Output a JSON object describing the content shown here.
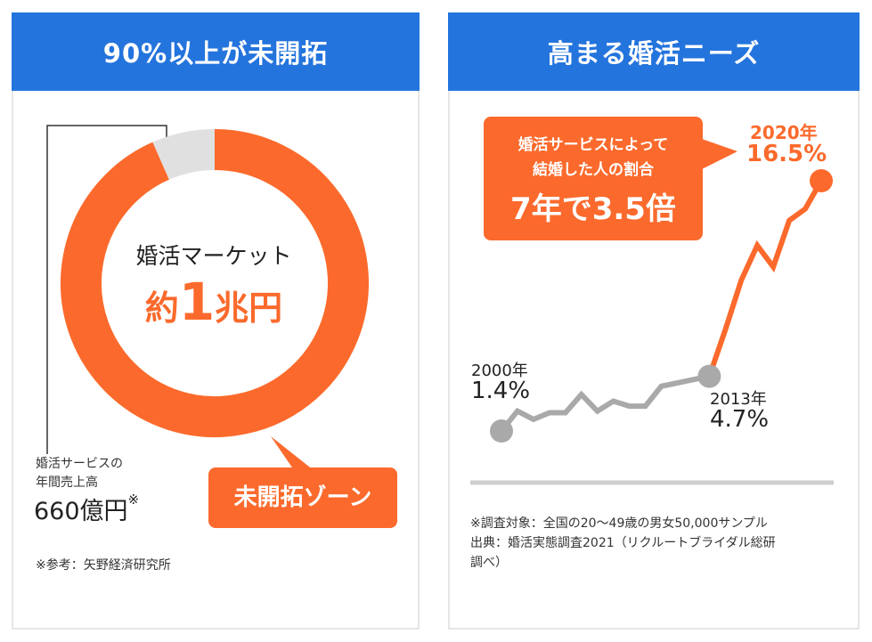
{
  "left_panel": {
    "header": "90%以上が未開拓",
    "center_label": "婚活マーケット",
    "center_value_prefix": "約",
    "center_value_number": "1",
    "center_value_suffix": "兆円",
    "callout_line1": "婚活サービスの",
    "callout_line2": "年間売上高",
    "callout_value": "660億円",
    "callout_mark": "※",
    "zone_label": "未開拓ゾーン",
    "source_note": "※参考：矢野経済研究所"
  },
  "right_panel": {
    "header": "高まる婚活ニーズ",
    "bubble_line1": "婚活サービスによって",
    "bubble_line2": "結婚した人の割合",
    "bubble_big": "7年で3.5倍",
    "label_2000_year": "2000年",
    "label_2000_value": "1.4%",
    "label_2013_year": "2013年",
    "label_2013_value": "4.7%",
    "label_2020_year": "2020年",
    "label_2020_value": "16.5%",
    "note_line1": "※調査対象：全国の20～49歳の男女50,000サンプル",
    "note_line2": "出典：婚活実態調査2021（リクルートブライダル総研",
    "note_line3": "調べ）"
  },
  "colors": {
    "header_blue": "#2474dd",
    "orange": "#fb6a2c",
    "gray": "#a9a9a9",
    "light_gray": "#e0e0e0"
  },
  "chart_data": [
    {
      "type": "pie",
      "variant": "donut",
      "title": "婚活マーケット",
      "slices": [
        {
          "label": "年間売上高",
          "value": 660
        },
        {
          "label": "未開拓ゾーン",
          "value": 9340
        }
      ],
      "unit": "億円"
    },
    {
      "type": "line",
      "title": "婚活サービスによって結婚した人の割合",
      "series": [
        {
          "name": "",
          "x": [
            2000,
            2001,
            2002,
            2003,
            2004,
            2005,
            2006,
            2007,
            2008,
            2009,
            2010,
            2011,
            2012,
            2013
          ],
          "y": [
            1.4,
            2.6,
            2.1,
            2.5,
            2.5,
            3.6,
            2.6,
            3.2,
            2.9,
            2.9,
            4.1,
            4.3,
            4.5,
            4.7
          ]
        },
        {
          "name": "",
          "x": [
            2013,
            2014,
            2015,
            2016,
            2017,
            2018,
            2019,
            2020
          ],
          "y": [
            4.7,
            7.5,
            10.5,
            12.6,
            11.3,
            14.1,
            14.8,
            16.5
          ]
        }
      ],
      "colors": [
        "#a9a9a9",
        "#fb6a2c"
      ]
    }
  ]
}
